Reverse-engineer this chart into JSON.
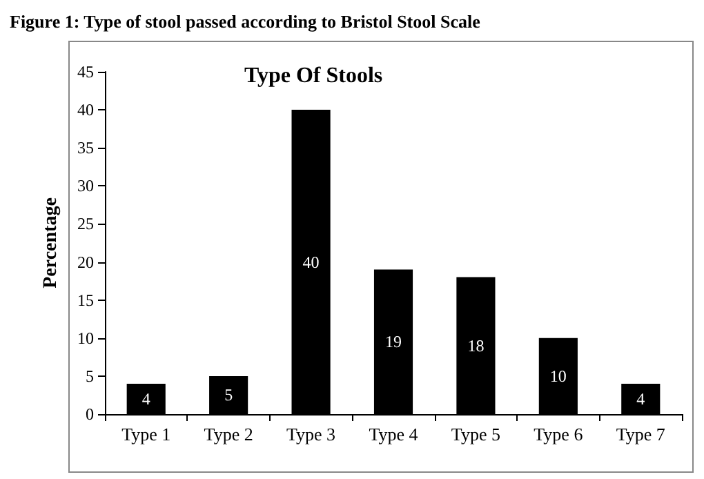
{
  "chart_data": {
    "type": "bar",
    "title": "Figure 1: Type of stool passed according to Bristol Stool Scale",
    "subtitle": "Type Of Stools",
    "ylabel": "Percentage",
    "categories": [
      "Type 1",
      "Type 2",
      "Type 3",
      "Type 4",
      "Type 5",
      "Type 6",
      "Type 7"
    ],
    "values": [
      4,
      5,
      40,
      19,
      18,
      10,
      4
    ],
    "color": "#000000",
    "ylim": [
      0,
      45
    ],
    "yticks": [
      0,
      5,
      10,
      15,
      20,
      25,
      30,
      35,
      40,
      45
    ],
    "grid": false,
    "data_labels": true
  }
}
